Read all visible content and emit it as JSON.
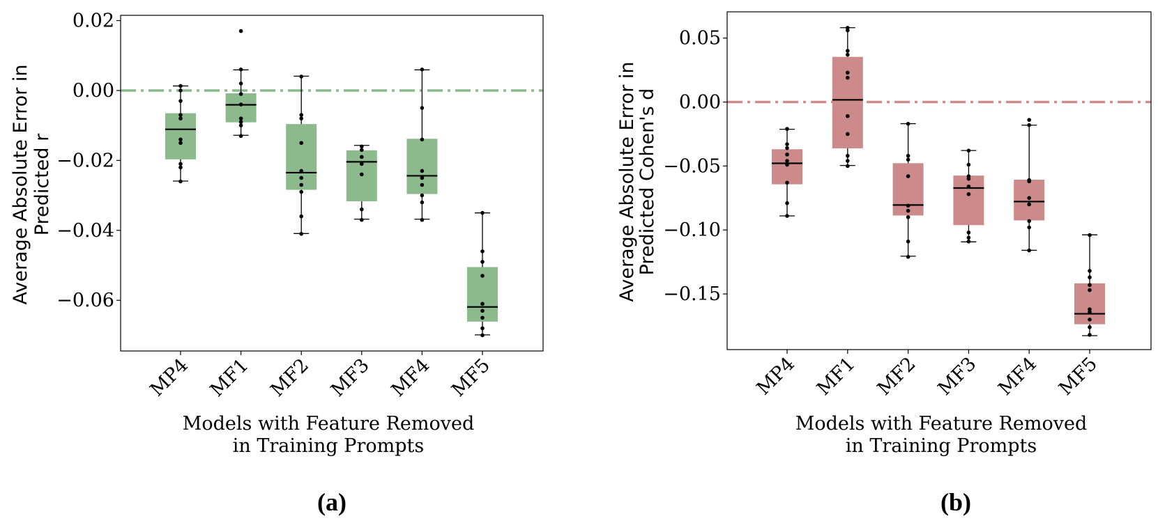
{
  "chart_data": [
    {
      "type": "box",
      "panel_label": "(a)",
      "categories": [
        "MP4",
        "MF1",
        "MF2",
        "MF3",
        "MF4",
        "MF5"
      ],
      "ylabel": [
        "Average Absolute Error in",
        "Predicted r"
      ],
      "xlabel": [
        "Models with Feature Removed",
        "in Training Prompts"
      ],
      "ylim": [
        -0.0745,
        0.0215
      ],
      "yticks": [
        0.02,
        0.0,
        -0.02,
        -0.04,
        -0.06
      ],
      "ytick_labels": [
        "0.02",
        "0.00",
        "−0.02",
        "−0.04",
        "−0.06"
      ],
      "reference_line": 0.0,
      "box_color": "#8cba8c",
      "ref_color": "#8cba8c",
      "boxes": [
        {
          "q1": -0.0197,
          "median": -0.0111,
          "q3": -0.0065,
          "whisker_low": -0.0259,
          "whisker_high": 0.0013,
          "points": [
            0.0013,
            0.0,
            -0.003,
            -0.007,
            -0.008,
            -0.014,
            -0.015,
            -0.021,
            -0.022,
            -0.026
          ]
        },
        {
          "q1": -0.0091,
          "median": -0.0041,
          "q3": -0.0008,
          "whisker_low": -0.0128,
          "whisker_high": 0.0059,
          "points": [
            0.017,
            0.006,
            0.002,
            -0.001,
            -0.004,
            -0.008,
            -0.009,
            -0.01,
            -0.013
          ]
        },
        {
          "q1": -0.0284,
          "median": -0.0235,
          "q3": -0.0096,
          "whisker_low": -0.0409,
          "whisker_high": 0.0041,
          "points": [
            0.004,
            -0.007,
            -0.008,
            -0.015,
            -0.023,
            -0.025,
            -0.027,
            -0.029,
            -0.036,
            -0.041
          ]
        },
        {
          "q1": -0.0317,
          "median": -0.0204,
          "q3": -0.0171,
          "whisker_low": -0.0368,
          "whisker_high": -0.0157,
          "points": [
            -0.016,
            -0.017,
            -0.019,
            -0.021,
            -0.024,
            -0.034,
            -0.037
          ]
        },
        {
          "q1": -0.0296,
          "median": -0.0244,
          "q3": -0.0138,
          "whisker_low": -0.0368,
          "whisker_high": 0.0059,
          "points": [
            0.006,
            -0.005,
            -0.014,
            -0.023,
            -0.025,
            -0.027,
            -0.03,
            -0.032,
            -0.037
          ]
        },
        {
          "q1": -0.0661,
          "median": -0.0619,
          "q3": -0.0505,
          "whisker_low": -0.0699,
          "whisker_high": -0.035,
          "points": [
            -0.035,
            -0.046,
            -0.049,
            -0.053,
            -0.061,
            -0.063,
            -0.065,
            -0.068,
            -0.07
          ]
        }
      ]
    },
    {
      "type": "box",
      "panel_label": "(b)",
      "categories": [
        "MP4",
        "MF1",
        "MF2",
        "MF3",
        "MF4",
        "MF5"
      ],
      "ylabel": [
        "Average Absolute Error in",
        "Predicted Cohen's d"
      ],
      "xlabel": [
        "Models with Feature Removed",
        "in Training Prompts"
      ],
      "ylim": [
        -0.1935,
        0.0705
      ],
      "yticks": [
        0.05,
        0.0,
        -0.05,
        -0.1,
        -0.15
      ],
      "ytick_labels": [
        "0.05",
        "0.00",
        "−0.05",
        "−0.10",
        "−0.15"
      ],
      "reference_line": 0.0,
      "box_color": "#cd8a8a",
      "ref_color": "#cd8a8a",
      "boxes": [
        {
          "q1": -0.0643,
          "median": -0.0479,
          "q3": -0.0369,
          "whisker_low": -0.089,
          "whisker_high": -0.0213,
          "points": [
            -0.021,
            -0.033,
            -0.036,
            -0.041,
            -0.046,
            -0.049,
            -0.063,
            -0.079,
            -0.089
          ]
        },
        {
          "q1": -0.0362,
          "median": 0.0017,
          "q3": 0.0353,
          "whisker_low": -0.0496,
          "whisker_high": 0.0581,
          "points": [
            0.058,
            0.056,
            0.04,
            0.037,
            0.023,
            0.019,
            -0.011,
            -0.025,
            -0.042,
            -0.046,
            -0.05
          ]
        },
        {
          "q1": -0.0887,
          "median": -0.0805,
          "q3": -0.0478,
          "whisker_low": -0.1205,
          "whisker_high": -0.0169,
          "points": [
            -0.017,
            -0.042,
            -0.045,
            -0.058,
            -0.081,
            -0.085,
            -0.09,
            -0.109,
            -0.121
          ]
        },
        {
          "q1": -0.0962,
          "median": -0.0672,
          "q3": -0.0575,
          "whisker_low": -0.1093,
          "whisker_high": -0.0379,
          "points": [
            -0.038,
            -0.049,
            -0.058,
            -0.06,
            -0.066,
            -0.072,
            -0.102,
            -0.106,
            -0.109
          ]
        },
        {
          "q1": -0.0925,
          "median": -0.0778,
          "q3": -0.0607,
          "whisker_low": -0.1159,
          "whisker_high": -0.0181,
          "points": [
            -0.014,
            -0.018,
            -0.061,
            -0.062,
            -0.075,
            -0.08,
            -0.093,
            -0.098,
            -0.116
          ]
        },
        {
          "q1": -0.1737,
          "median": -0.1655,
          "q3": -0.1417,
          "whisker_low": -0.1826,
          "whisker_high": -0.1038,
          "points": [
            -0.104,
            -0.132,
            -0.137,
            -0.143,
            -0.147,
            -0.162,
            -0.164,
            -0.17,
            -0.176,
            -0.182
          ]
        }
      ]
    }
  ]
}
